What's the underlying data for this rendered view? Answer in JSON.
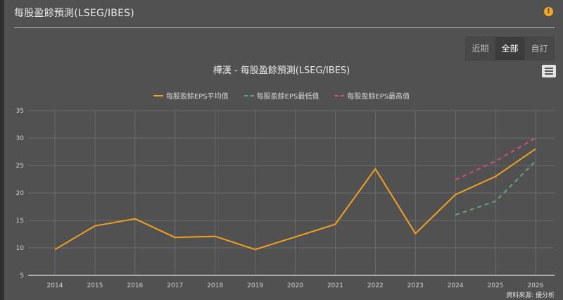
{
  "panel": {
    "title": "每股盈餘預測(LSEG/IBES)",
    "info_icon": "info-icon"
  },
  "range_selector": {
    "buttons": [
      {
        "label": "近期",
        "active": false
      },
      {
        "label": "全部",
        "active": true
      },
      {
        "label": "自訂",
        "active": false
      }
    ]
  },
  "menu_icon": "hamburger-menu-icon",
  "credit": "資料來源: 優分析",
  "colors": {
    "background": "#515151",
    "avg": "#f0a020",
    "low": "#5fa87a",
    "high": "#d4507a",
    "grid": "#6a6a6a",
    "axis": "#c8c8c8"
  },
  "chart_data": {
    "type": "line",
    "title": "樺漢 - 每股盈餘預測(LSEG/IBES)",
    "xlabel": "",
    "ylabel": "",
    "categories": [
      "2014",
      "2015",
      "2016",
      "2017",
      "2018",
      "2019",
      "2020",
      "2021",
      "2022",
      "2023",
      "2024",
      "2025",
      "2026"
    ],
    "ylim": [
      5,
      35
    ],
    "yticks": [
      5,
      10,
      15,
      20,
      25,
      30,
      35
    ],
    "grid": true,
    "legend_position": "top",
    "series": [
      {
        "name": "每股盈餘EPS平均值",
        "style": "solid",
        "color": "#f0a020",
        "values": [
          9.7,
          14.0,
          15.3,
          11.9,
          12.1,
          9.7,
          12.0,
          14.3,
          24.4,
          12.6,
          19.7,
          23.0,
          28.0
        ]
      },
      {
        "name": "每股盈餘EPS最低值",
        "style": "dashed",
        "color": "#5fa87a",
        "values": [
          null,
          null,
          null,
          null,
          null,
          null,
          null,
          null,
          null,
          null,
          16.0,
          18.5,
          25.8
        ]
      },
      {
        "name": "每股盈餘EPS最高值",
        "style": "dashed",
        "color": "#d4507a",
        "values": [
          null,
          null,
          null,
          null,
          null,
          null,
          null,
          null,
          null,
          null,
          22.4,
          25.8,
          30.0
        ]
      }
    ]
  }
}
